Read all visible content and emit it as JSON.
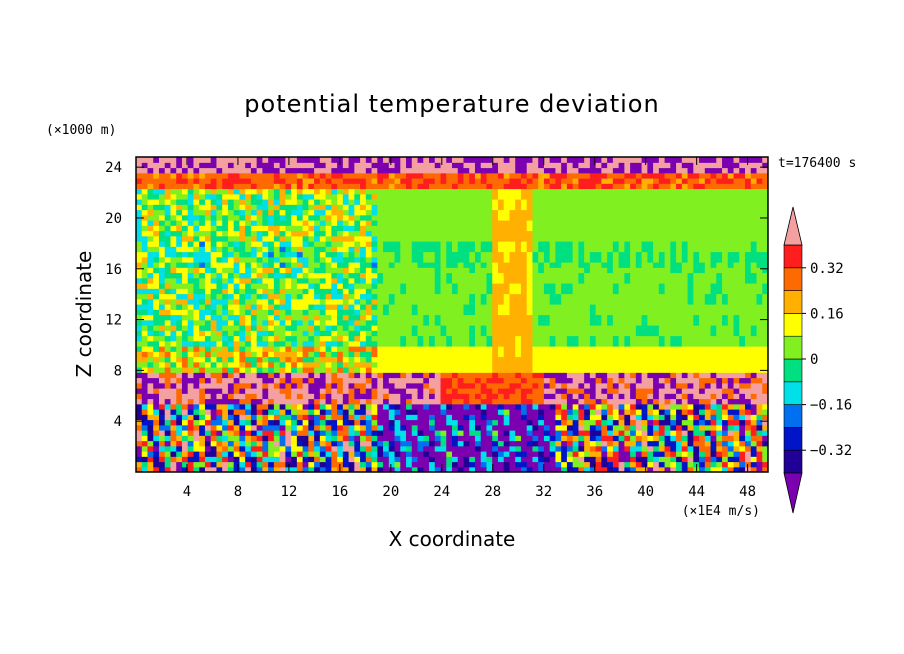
{
  "chart_data": {
    "type": "heatmap",
    "title": "potential temperature deviation",
    "xlabel": "X coordinate",
    "ylabel": "Z coordinate",
    "x_unit": "(×1E4 m/s)",
    "y_unit": "(×1000 m)",
    "time_label": "t=176400 s",
    "xlim": [
      0,
      49.6
    ],
    "ylim": [
      0,
      24.8
    ],
    "x_ticks": [
      4,
      8,
      12,
      16,
      20,
      24,
      28,
      32,
      36,
      40,
      44,
      48
    ],
    "y_ticks": [
      4,
      8,
      12,
      16,
      20,
      24
    ],
    "colorbar": {
      "levels": [
        -0.4,
        -0.32,
        -0.24,
        -0.16,
        -0.08,
        0,
        0.08,
        0.16,
        0.24,
        0.32,
        0.4
      ],
      "tick_labels": [
        "0.32",
        "0.16",
        "0",
        "−0.16",
        "−0.32"
      ],
      "tick_values": [
        0.32,
        0.16,
        0,
        -0.16,
        -0.32
      ],
      "colors": [
        "#7a00b0",
        "#200096",
        "#0014c8",
        "#0070f0",
        "#00e0e8",
        "#00e080",
        "#80f020",
        "#ffff00",
        "#ffb000",
        "#ff6a00",
        "#ff1e1e",
        "#f5a0a0"
      ],
      "extend": "both"
    },
    "vertical_profile": [
      {
        "z_range": [
          0,
          5.5
        ],
        "pattern": "turbulent, mixed values -0.4 to 0.4 (strongly negative near x 20-33)"
      },
      {
        "z_range": [
          5.5,
          8
        ],
        "pattern": "mostly > 0.4 and < -0.4 alternating; 0.24-0.40 near x 24-32"
      },
      {
        "z_range": [
          8,
          10
        ],
        "value": 0.12
      },
      {
        "z_range": [
          10,
          16
        ],
        "value": 0.02
      },
      {
        "z_range": [
          16,
          18
        ],
        "value": 0.0
      },
      {
        "z_range": [
          18,
          22.3
        ],
        "value": 0.04
      },
      {
        "z_range": [
          22.3,
          23.2
        ],
        "value": 0.3
      },
      {
        "z_range": [
          23.2,
          24.8
        ],
        "pattern": "banded extremes, > 0.4 and < -0.4"
      }
    ]
  }
}
